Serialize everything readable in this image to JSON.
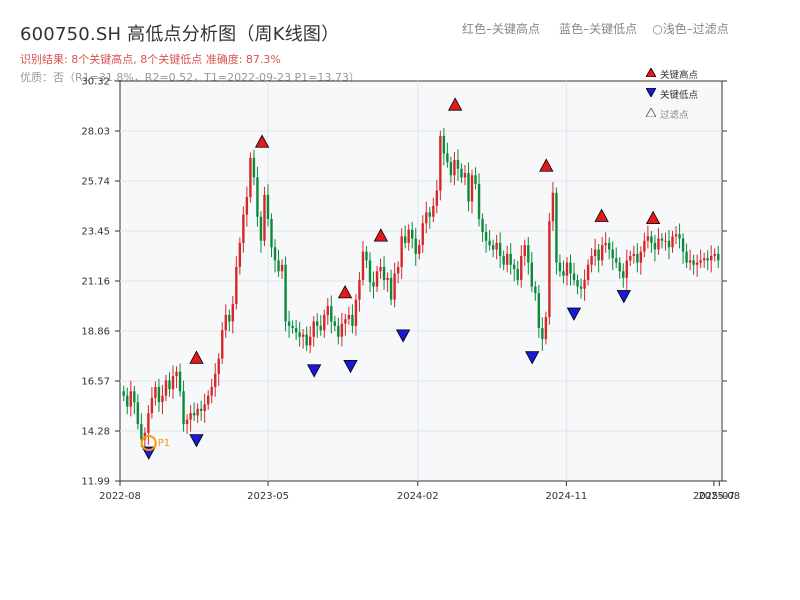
{
  "header": {
    "title": "600750.SH 高低点分析图（周K线图）",
    "tagline": "红色–关键高点     蓝色–关键低点    ○浅色–过滤点",
    "result": "识别结果: 8个关键高点, 8个关键低点  准确度: 87.3%",
    "quality": "优质：否（R1=31.8%，R2=0.52，T1=2022-09-23 P1=13.73）"
  },
  "legend": {
    "high": "关键高点",
    "low": "关键低点",
    "filtered": "过滤点"
  },
  "colors": {
    "up": "#d62728",
    "down": "#0a8a3a",
    "high_marker": "#e31a1c",
    "low_marker": "#1a1ad6",
    "highlight": "#ff9900"
  },
  "chart_data": {
    "type": "candlestick",
    "ylim": [
      11.99,
      30.32
    ],
    "ytick_labels": [
      "11.99",
      "14.28",
      "16.57",
      "18.86",
      "21.16",
      "23.45",
      "25.74",
      "28.03",
      "30.32"
    ],
    "xtick_labels": [
      "2022-08",
      "2023-05",
      "2024-02",
      "2024-11",
      "2025-07",
      "2025-08"
    ],
    "x_range": [
      "2022-08-01",
      "2025-08-15"
    ],
    "key_highs": [
      {
        "date": "2022-12-20",
        "value": 17.2
      },
      {
        "date": "2023-04-20",
        "value": 27.1
      },
      {
        "date": "2023-09-20",
        "value": 20.2
      },
      {
        "date": "2023-11-25",
        "value": 22.8
      },
      {
        "date": "2024-04-10",
        "value": 28.8
      },
      {
        "date": "2024-09-25",
        "value": 26.0
      },
      {
        "date": "2025-01-05",
        "value": 23.7
      },
      {
        "date": "2025-04-10",
        "value": 23.6
      }
    ],
    "key_lows": [
      {
        "date": "2022-09-23",
        "value": 13.73
      },
      {
        "date": "2022-12-20",
        "value": 14.3
      },
      {
        "date": "2023-07-25",
        "value": 17.5
      },
      {
        "date": "2023-09-30",
        "value": 17.7
      },
      {
        "date": "2024-01-05",
        "value": 19.1
      },
      {
        "date": "2024-08-30",
        "value": 18.1
      },
      {
        "date": "2024-11-15",
        "value": 20.1
      },
      {
        "date": "2025-02-15",
        "value": 20.9
      }
    ],
    "p1_label": "P1",
    "p1_point": {
      "date": "2022-09-23",
      "value": 13.73
    },
    "weekly_closes": [
      15.9,
      15.4,
      16.1,
      15.6,
      14.6,
      13.9,
      14.2,
      15.1,
      15.8,
      16.3,
      15.6,
      15.9,
      16.6,
      16.2,
      16.8,
      17.0,
      16.1,
      14.6,
      14.8,
      15.1,
      15.0,
      15.3,
      15.2,
      15.5,
      15.9,
      16.3,
      16.9,
      17.6,
      18.9,
      19.6,
      19.3,
      20.1,
      21.8,
      22.9,
      24.2,
      25.0,
      26.8,
      25.9,
      24.1,
      23.0,
      25.1,
      24.0,
      22.7,
      22.1,
      21.6,
      21.9,
      19.3,
      19.1,
      19.0,
      18.8,
      18.6,
      18.7,
      18.2,
      18.6,
      19.3,
      19.1,
      18.9,
      19.6,
      20.0,
      19.3,
      19.1,
      18.6,
      19.2,
      19.4,
      19.6,
      19.1,
      20.3,
      21.2,
      22.5,
      22.1,
      21.1,
      20.9,
      21.6,
      21.8,
      21.2,
      21.3,
      20.3,
      21.5,
      21.8,
      23.2,
      22.9,
      23.5,
      23.1,
      22.4,
      22.8,
      23.8,
      24.3,
      24.1,
      24.6,
      25.3,
      27.8,
      27.0,
      26.6,
      26.0,
      26.7,
      26.3,
      25.9,
      26.1,
      24.8,
      26.0,
      25.6,
      24.0,
      23.4,
      23.0,
      22.8,
      22.6,
      22.9,
      22.3,
      21.9,
      22.4,
      21.9,
      21.7,
      21.2,
      22.3,
      22.8,
      22.0,
      20.9,
      20.6,
      19.0,
      18.5,
      19.5,
      23.9,
      25.2,
      22.0,
      21.6,
      21.4,
      22.0,
      21.5,
      21.2,
      20.9,
      20.8,
      21.2,
      21.9,
      22.3,
      22.6,
      22.1,
      22.8,
      22.9,
      22.6,
      22.2,
      22.0,
      21.6,
      21.3,
      22.1,
      22.3,
      22.4,
      22.0,
      22.5,
      23.0,
      23.2,
      22.9,
      22.6,
      23.1,
      23.0,
      23.0,
      22.7,
      23.2,
      23.3,
      23.1,
      22.5,
      22.0,
      22.1,
      21.9,
      22.0,
      22.1,
      22.2,
      22.1,
      22.3,
      22.4,
      22.1
    ]
  }
}
